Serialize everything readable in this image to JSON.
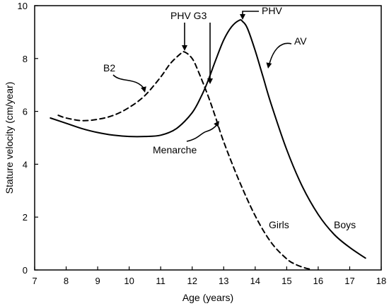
{
  "chart_data": {
    "type": "line",
    "xlabel": "Age (years)",
    "ylabel": "Stature velocity (cm/year)",
    "xlim": [
      7,
      18
    ],
    "ylim": [
      0,
      10
    ],
    "x_ticks": [
      7,
      8,
      9,
      10,
      11,
      12,
      13,
      14,
      15,
      16,
      17,
      18
    ],
    "y_ticks": [
      0,
      2,
      4,
      6,
      8,
      10
    ],
    "grid": false,
    "series": [
      {
        "name": "Girls",
        "style": "dashed",
        "color": "#000000",
        "x": [
          7.75,
          8.0,
          8.5,
          9.0,
          9.5,
          10.0,
          10.5,
          11.0,
          11.3,
          11.6,
          11.75,
          12.0,
          12.2,
          12.5,
          12.75,
          13.0,
          13.5,
          14.0,
          14.5,
          15.0,
          15.3,
          15.6,
          15.75
        ],
        "y": [
          5.85,
          5.75,
          5.65,
          5.7,
          5.85,
          6.15,
          6.6,
          7.3,
          7.8,
          8.15,
          8.25,
          8.0,
          7.5,
          6.6,
          5.75,
          4.85,
          3.35,
          2.05,
          1.05,
          0.42,
          0.2,
          0.07,
          0.03
        ]
      },
      {
        "name": "Boys",
        "style": "solid",
        "color": "#000000",
        "x": [
          7.5,
          8.0,
          8.5,
          9.0,
          9.5,
          10.0,
          10.5,
          11.0,
          11.5,
          12.0,
          12.3,
          12.5,
          12.75,
          13.0,
          13.25,
          13.5,
          13.6,
          13.75,
          14.0,
          14.25,
          14.5,
          15.0,
          15.5,
          16.0,
          16.5,
          17.0,
          17.5
        ],
        "y": [
          5.75,
          5.55,
          5.35,
          5.2,
          5.1,
          5.05,
          5.05,
          5.1,
          5.35,
          5.95,
          6.6,
          7.15,
          7.95,
          8.7,
          9.2,
          9.45,
          9.4,
          9.15,
          8.3,
          7.3,
          6.3,
          4.55,
          3.15,
          2.1,
          1.35,
          0.85,
          0.45
        ]
      }
    ],
    "annotations": {
      "b2": "B2",
      "phv_g3": "PHV G3",
      "phv": "PHV",
      "av": "AV",
      "menarche": "Menarche",
      "girls": "Girls",
      "boys": "Boys"
    }
  }
}
